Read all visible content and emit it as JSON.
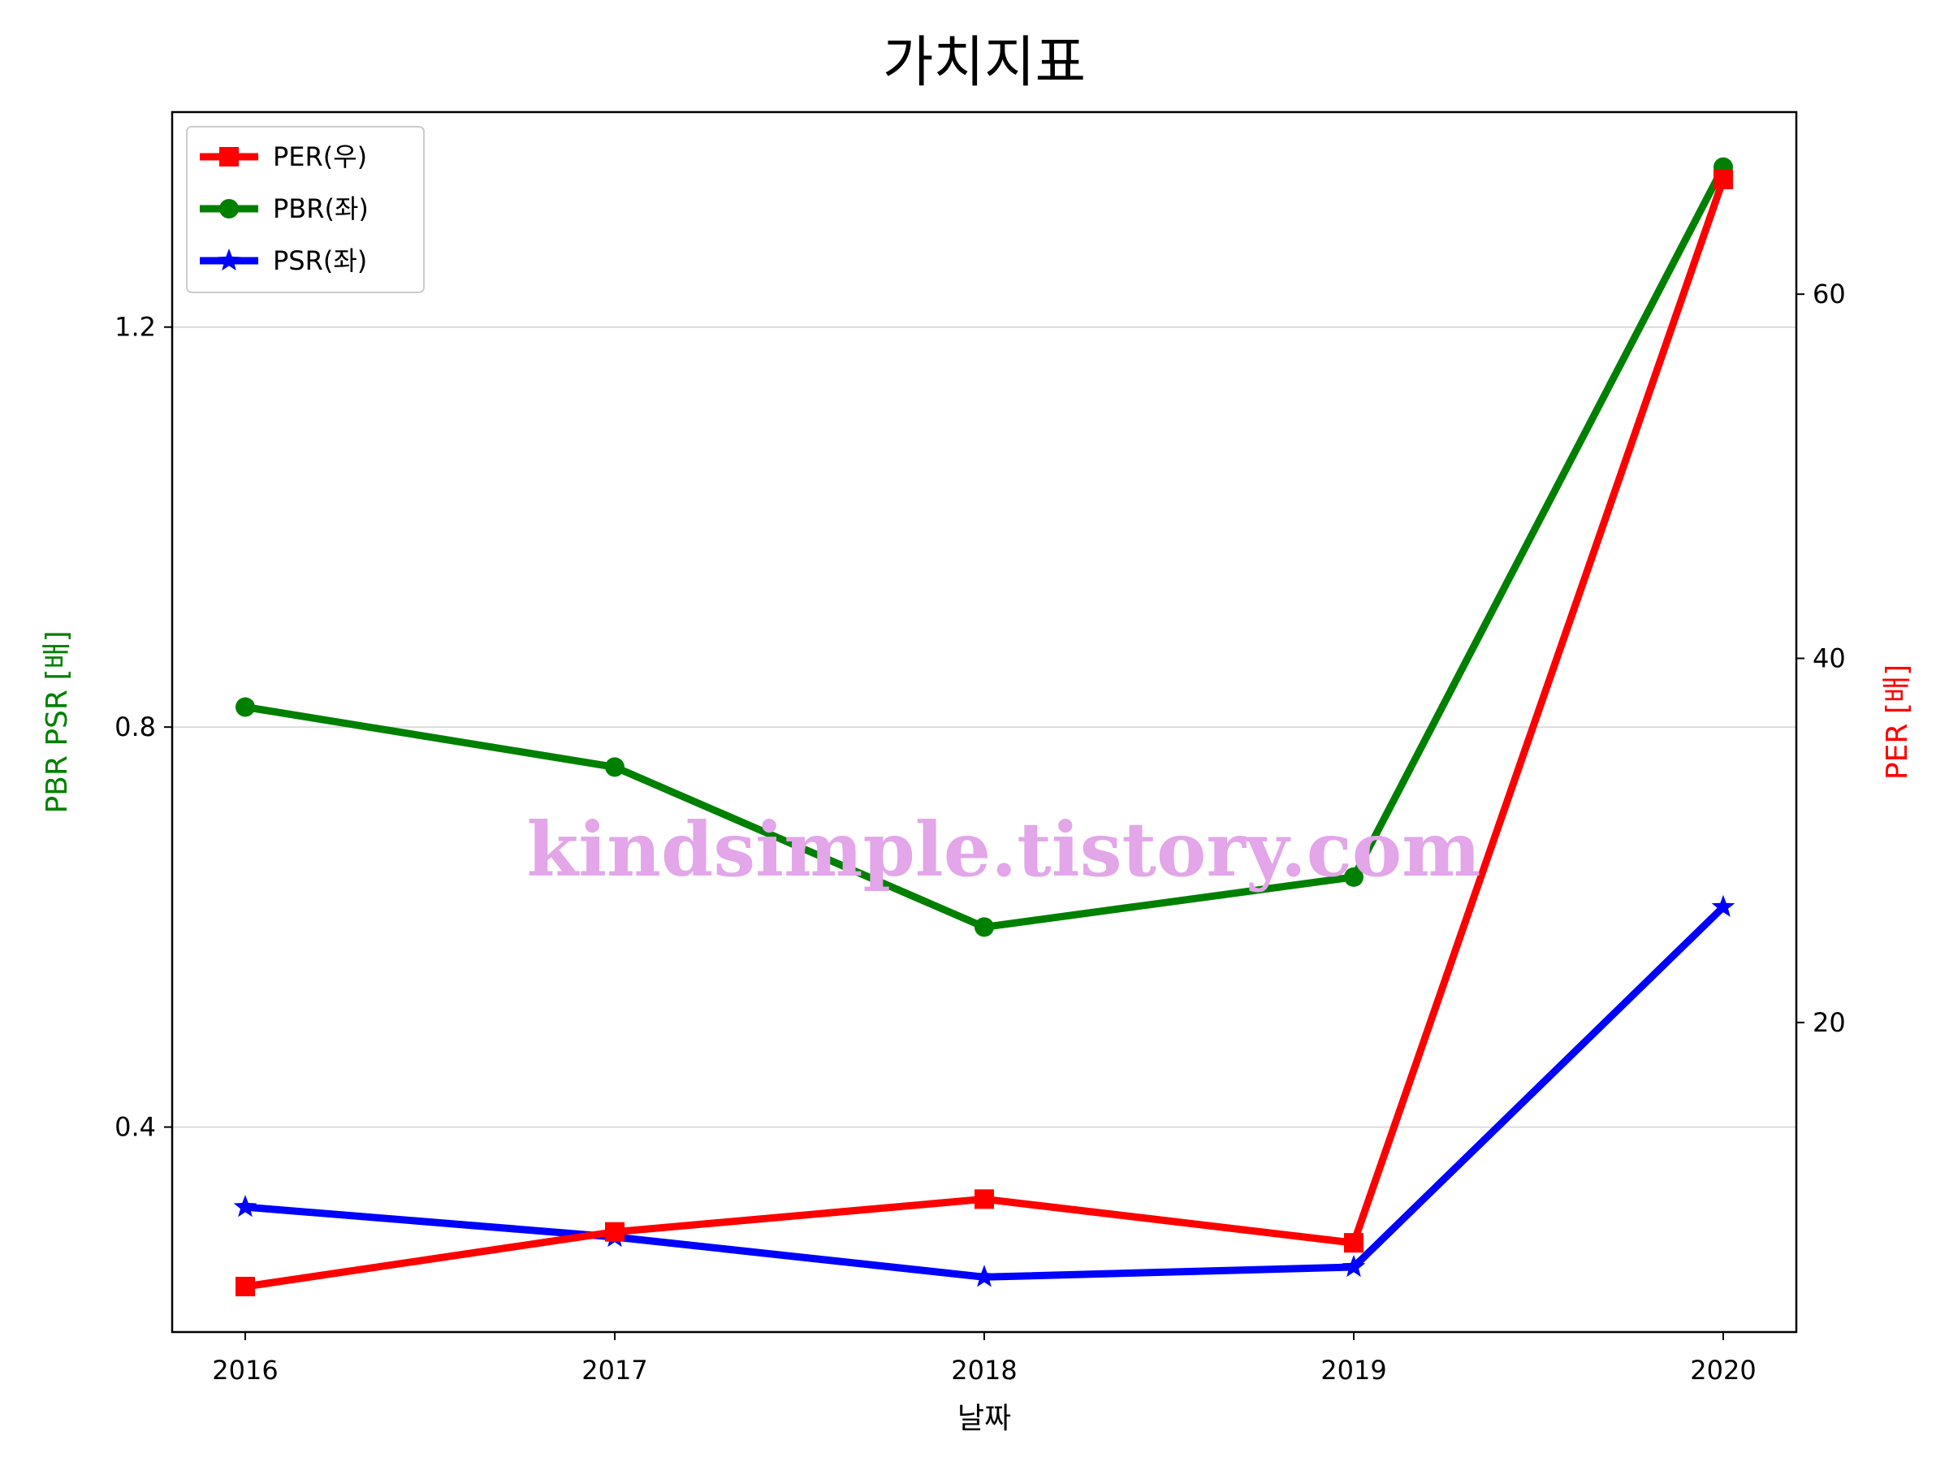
{
  "chart_data": {
    "type": "line",
    "title": "가치지표",
    "xlabel": "날짜",
    "ylabel_left": "PBR PSR [배]",
    "ylabel_right": "PER [배]",
    "categories": [
      "2016",
      "2017",
      "2018",
      "2019",
      "2020"
    ],
    "left_axis": {
      "ylim": [
        0.195,
        1.415
      ],
      "ticks": [
        0.4,
        0.8,
        1.2
      ],
      "tick_labels": [
        "0.4",
        "0.8",
        "1.2"
      ],
      "label_color": "#008000"
    },
    "right_axis": {
      "ylim": [
        3.0,
        70.0
      ],
      "ticks": [
        20,
        40,
        60
      ],
      "tick_labels": [
        "20",
        "40",
        "60"
      ],
      "label_color": "#ff0000"
    },
    "grid": "horizontal (left axis)",
    "legend_position": "upper left",
    "series": [
      {
        "name": "PER(우)",
        "axis": "right",
        "color": "#ff0000",
        "marker": "square",
        "values": [
          5.5,
          8.5,
          10.3,
          7.9,
          66.3
        ]
      },
      {
        "name": "PBR(좌)",
        "axis": "left",
        "color": "#008000",
        "marker": "circle",
        "values": [
          0.82,
          0.76,
          0.6,
          0.65,
          1.36
        ]
      },
      {
        "name": "PSR(좌)",
        "axis": "left",
        "color": "#0000ff",
        "marker": "star",
        "values": [
          0.32,
          0.29,
          0.25,
          0.26,
          0.62
        ]
      }
    ],
    "watermark": "kindsimple.tistory.com"
  }
}
